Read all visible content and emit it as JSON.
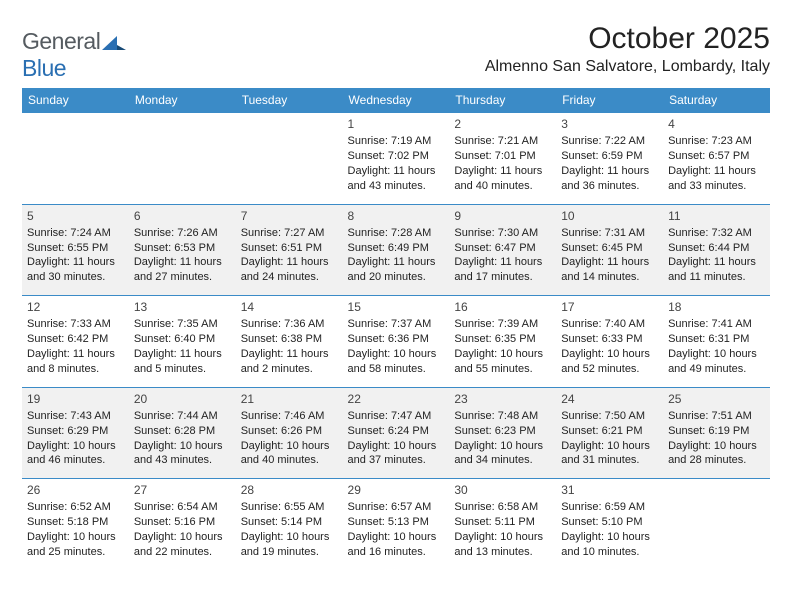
{
  "logo": {
    "general": "General",
    "blue": "Blue"
  },
  "title": "October 2025",
  "location": "Almenno San Salvatore, Lombardy, Italy",
  "header_bg": "#3b8bc7",
  "header_fg": "#ffffff",
  "alt_row_bg": "#f1f1f1",
  "border_color": "#3b8bc7",
  "days_of_week": [
    "Sunday",
    "Monday",
    "Tuesday",
    "Wednesday",
    "Thursday",
    "Friday",
    "Saturday"
  ],
  "weeks": [
    {
      "offweek": false,
      "cells": [
        {
          "blank": true
        },
        {
          "blank": true
        },
        {
          "blank": true
        },
        {
          "day": "1",
          "sunrise": "Sunrise: 7:19 AM",
          "sunset": "Sunset: 7:02 PM",
          "day1": "Daylight: 11 hours",
          "day2": "and 43 minutes."
        },
        {
          "day": "2",
          "sunrise": "Sunrise: 7:21 AM",
          "sunset": "Sunset: 7:01 PM",
          "day1": "Daylight: 11 hours",
          "day2": "and 40 minutes."
        },
        {
          "day": "3",
          "sunrise": "Sunrise: 7:22 AM",
          "sunset": "Sunset: 6:59 PM",
          "day1": "Daylight: 11 hours",
          "day2": "and 36 minutes."
        },
        {
          "day": "4",
          "sunrise": "Sunrise: 7:23 AM",
          "sunset": "Sunset: 6:57 PM",
          "day1": "Daylight: 11 hours",
          "day2": "and 33 minutes."
        }
      ]
    },
    {
      "offweek": true,
      "cells": [
        {
          "day": "5",
          "sunrise": "Sunrise: 7:24 AM",
          "sunset": "Sunset: 6:55 PM",
          "day1": "Daylight: 11 hours",
          "day2": "and 30 minutes."
        },
        {
          "day": "6",
          "sunrise": "Sunrise: 7:26 AM",
          "sunset": "Sunset: 6:53 PM",
          "day1": "Daylight: 11 hours",
          "day2": "and 27 minutes."
        },
        {
          "day": "7",
          "sunrise": "Sunrise: 7:27 AM",
          "sunset": "Sunset: 6:51 PM",
          "day1": "Daylight: 11 hours",
          "day2": "and 24 minutes."
        },
        {
          "day": "8",
          "sunrise": "Sunrise: 7:28 AM",
          "sunset": "Sunset: 6:49 PM",
          "day1": "Daylight: 11 hours",
          "day2": "and 20 minutes."
        },
        {
          "day": "9",
          "sunrise": "Sunrise: 7:30 AM",
          "sunset": "Sunset: 6:47 PM",
          "day1": "Daylight: 11 hours",
          "day2": "and 17 minutes."
        },
        {
          "day": "10",
          "sunrise": "Sunrise: 7:31 AM",
          "sunset": "Sunset: 6:45 PM",
          "day1": "Daylight: 11 hours",
          "day2": "and 14 minutes."
        },
        {
          "day": "11",
          "sunrise": "Sunrise: 7:32 AM",
          "sunset": "Sunset: 6:44 PM",
          "day1": "Daylight: 11 hours",
          "day2": "and 11 minutes."
        }
      ]
    },
    {
      "offweek": false,
      "cells": [
        {
          "day": "12",
          "sunrise": "Sunrise: 7:33 AM",
          "sunset": "Sunset: 6:42 PM",
          "day1": "Daylight: 11 hours",
          "day2": "and 8 minutes."
        },
        {
          "day": "13",
          "sunrise": "Sunrise: 7:35 AM",
          "sunset": "Sunset: 6:40 PM",
          "day1": "Daylight: 11 hours",
          "day2": "and 5 minutes."
        },
        {
          "day": "14",
          "sunrise": "Sunrise: 7:36 AM",
          "sunset": "Sunset: 6:38 PM",
          "day1": "Daylight: 11 hours",
          "day2": "and 2 minutes."
        },
        {
          "day": "15",
          "sunrise": "Sunrise: 7:37 AM",
          "sunset": "Sunset: 6:36 PM",
          "day1": "Daylight: 10 hours",
          "day2": "and 58 minutes."
        },
        {
          "day": "16",
          "sunrise": "Sunrise: 7:39 AM",
          "sunset": "Sunset: 6:35 PM",
          "day1": "Daylight: 10 hours",
          "day2": "and 55 minutes."
        },
        {
          "day": "17",
          "sunrise": "Sunrise: 7:40 AM",
          "sunset": "Sunset: 6:33 PM",
          "day1": "Daylight: 10 hours",
          "day2": "and 52 minutes."
        },
        {
          "day": "18",
          "sunrise": "Sunrise: 7:41 AM",
          "sunset": "Sunset: 6:31 PM",
          "day1": "Daylight: 10 hours",
          "day2": "and 49 minutes."
        }
      ]
    },
    {
      "offweek": true,
      "cells": [
        {
          "day": "19",
          "sunrise": "Sunrise: 7:43 AM",
          "sunset": "Sunset: 6:29 PM",
          "day1": "Daylight: 10 hours",
          "day2": "and 46 minutes."
        },
        {
          "day": "20",
          "sunrise": "Sunrise: 7:44 AM",
          "sunset": "Sunset: 6:28 PM",
          "day1": "Daylight: 10 hours",
          "day2": "and 43 minutes."
        },
        {
          "day": "21",
          "sunrise": "Sunrise: 7:46 AM",
          "sunset": "Sunset: 6:26 PM",
          "day1": "Daylight: 10 hours",
          "day2": "and 40 minutes."
        },
        {
          "day": "22",
          "sunrise": "Sunrise: 7:47 AM",
          "sunset": "Sunset: 6:24 PM",
          "day1": "Daylight: 10 hours",
          "day2": "and 37 minutes."
        },
        {
          "day": "23",
          "sunrise": "Sunrise: 7:48 AM",
          "sunset": "Sunset: 6:23 PM",
          "day1": "Daylight: 10 hours",
          "day2": "and 34 minutes."
        },
        {
          "day": "24",
          "sunrise": "Sunrise: 7:50 AM",
          "sunset": "Sunset: 6:21 PM",
          "day1": "Daylight: 10 hours",
          "day2": "and 31 minutes."
        },
        {
          "day": "25",
          "sunrise": "Sunrise: 7:51 AM",
          "sunset": "Sunset: 6:19 PM",
          "day1": "Daylight: 10 hours",
          "day2": "and 28 minutes."
        }
      ]
    },
    {
      "offweek": false,
      "cells": [
        {
          "day": "26",
          "sunrise": "Sunrise: 6:52 AM",
          "sunset": "Sunset: 5:18 PM",
          "day1": "Daylight: 10 hours",
          "day2": "and 25 minutes."
        },
        {
          "day": "27",
          "sunrise": "Sunrise: 6:54 AM",
          "sunset": "Sunset: 5:16 PM",
          "day1": "Daylight: 10 hours",
          "day2": "and 22 minutes."
        },
        {
          "day": "28",
          "sunrise": "Sunrise: 6:55 AM",
          "sunset": "Sunset: 5:14 PM",
          "day1": "Daylight: 10 hours",
          "day2": "and 19 minutes."
        },
        {
          "day": "29",
          "sunrise": "Sunrise: 6:57 AM",
          "sunset": "Sunset: 5:13 PM",
          "day1": "Daylight: 10 hours",
          "day2": "and 16 minutes."
        },
        {
          "day": "30",
          "sunrise": "Sunrise: 6:58 AM",
          "sunset": "Sunset: 5:11 PM",
          "day1": "Daylight: 10 hours",
          "day2": "and 13 minutes."
        },
        {
          "day": "31",
          "sunrise": "Sunrise: 6:59 AM",
          "sunset": "Sunset: 5:10 PM",
          "day1": "Daylight: 10 hours",
          "day2": "and 10 minutes."
        },
        {
          "blank": true
        }
      ]
    }
  ]
}
